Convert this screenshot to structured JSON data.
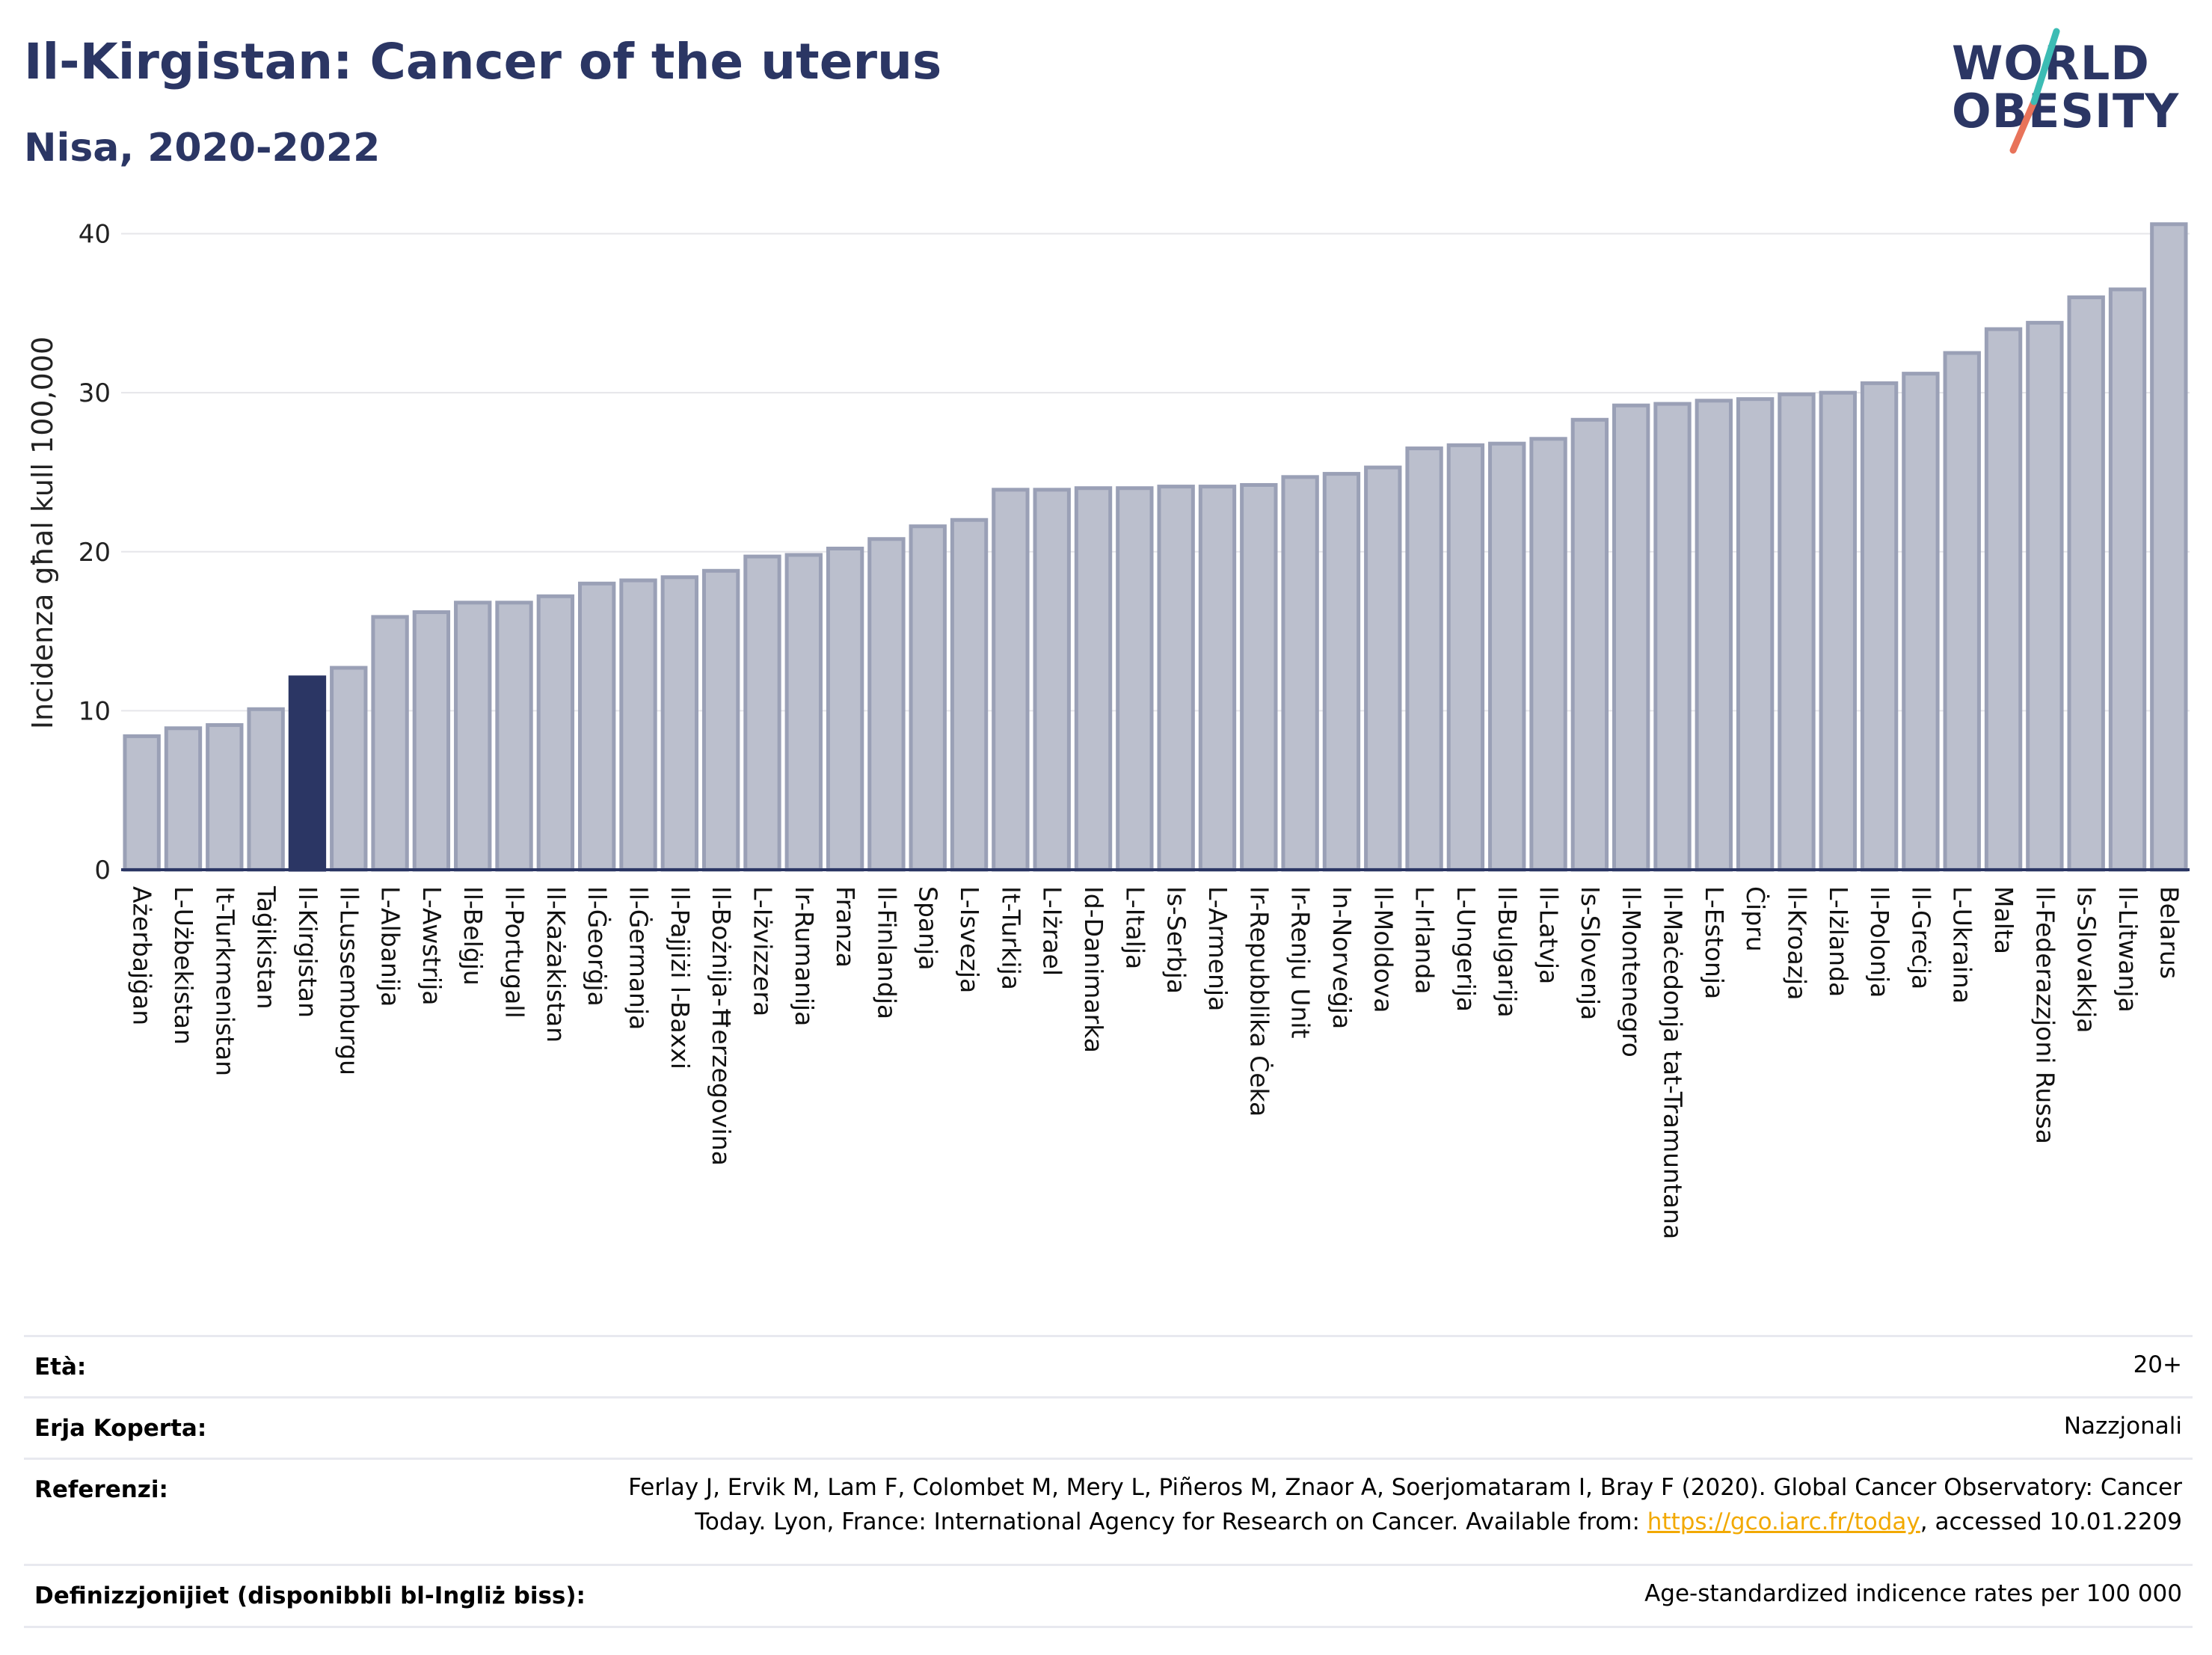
{
  "header": {
    "title": "Il-Kirgistan: Cancer of the uterus",
    "subtitle": "Nisa, 2020-2022"
  },
  "logo": {
    "line1": "WORLD",
    "line2": "OBESITY"
  },
  "colors": {
    "bar": "#bbbfcd",
    "bar_edge": "#9aa0b6",
    "highlight": "#2b3664",
    "text": "#2b3664",
    "grid": "#e6e6ea",
    "link": "#f2a900"
  },
  "chart_data": {
    "type": "bar",
    "ylabel": "Incidenza għal kull 100,000",
    "ylim": [
      0,
      42
    ],
    "yticks": [
      0,
      10,
      20,
      30,
      40
    ],
    "grid": true,
    "highlight": "Il-Kirgistan",
    "categories": [
      "Ażerbajġan",
      "L-Użbekistan",
      "It-Turkmenistan",
      "Taġikistan",
      "Il-Kirgistan",
      "Il-Lussemburgu",
      "L-Albanija",
      "L-Awstrija",
      "Il-Belġju",
      "Il-Portugall",
      "Il-Każakistan",
      "Il-Ġeorġja",
      "Il-Ġermanja",
      "Il-Pajjiżi l-Baxxi",
      "Il-Bożnija-Ħerzegovina",
      "L-Iżvizzera",
      "Ir-Rumanija",
      "Franza",
      "Il-Finlandja",
      "Spanja",
      "L-Isvezja",
      "It-Turkija",
      "L-Iżrael",
      "Id-Danimarka",
      "L-Italja",
      "Is-Serbja",
      "L-Armenja",
      "Ir-Repubblika Ċeka",
      "Ir-Renju Unit",
      "In-Norveġja",
      "Il-Moldova",
      "L-Irlanda",
      "L-Ungerija",
      "Il-Bulgarija",
      "Il-Latvja",
      "Is-Slovenja",
      "Il-Montenegro",
      "Il-Maċedonja tat-Tramuntana",
      "L-Estonja",
      "Ċipru",
      "Il-Kroazja",
      "L-Iżlanda",
      "Il-Polonja",
      "Il-Greċja",
      "L-Ukraina",
      "Malta",
      "Il-Federazzjoni Russa",
      "Is-Slovakkja",
      "Il-Litwanja",
      "Belarus"
    ],
    "values": [
      8.4,
      8.9,
      9.1,
      10.1,
      12.1,
      12.7,
      15.9,
      16.2,
      16.8,
      16.8,
      17.2,
      18.0,
      18.2,
      18.4,
      18.8,
      19.7,
      19.8,
      20.2,
      20.8,
      21.6,
      22.0,
      23.9,
      23.9,
      24.0,
      24.0,
      24.1,
      24.1,
      24.2,
      24.7,
      24.9,
      25.3,
      26.5,
      26.7,
      26.8,
      27.1,
      28.3,
      29.2,
      29.3,
      29.5,
      29.6,
      29.9,
      30.0,
      30.6,
      31.2,
      32.5,
      34.0,
      34.4,
      36.0,
      36.5,
      40.6
    ]
  },
  "info": {
    "age_label": "Età:",
    "age_value": "20+",
    "coverage_label": "Erja Koperta:",
    "coverage_value": "Nazzjonali",
    "ref_label": "Referenzi:",
    "ref_line1": "Ferlay J, Ervik M, Lam F, Colombet M, Mery L, Piñeros M, Znaor A, Soerjomataram I, Bray F (2020). Global Cancer Observatory: Cancer",
    "ref_line2_pre": "Today. Lyon, France: International Agency for Research on Cancer. Available from: ",
    "ref_link": "https://gco.iarc.fr/today",
    "ref_line2_post": ", accessed 10.01.2209",
    "def_label": "Definizzjonijiet (disponibbli bl-Ingliż biss):",
    "def_value": "Age-standardized indicence rates per 100 000"
  }
}
